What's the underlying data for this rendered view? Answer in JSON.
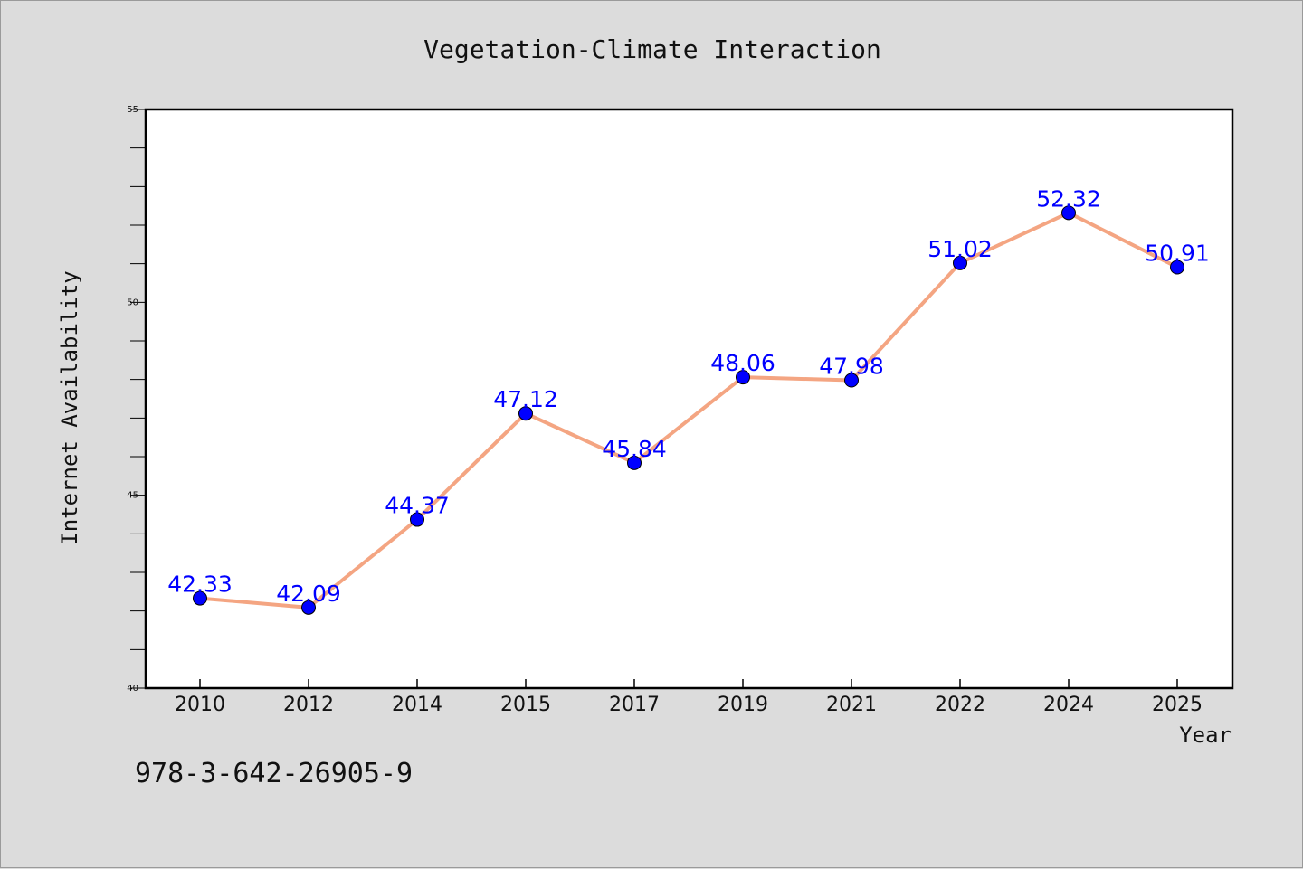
{
  "chart_data": {
    "type": "line",
    "title": "Vegetation-Climate Interaction",
    "xlabel": "Year",
    "ylabel": "Internet Availability",
    "categories": [
      "2010",
      "2012",
      "2014",
      "2015",
      "2017",
      "2019",
      "2021",
      "2022",
      "2024",
      "2025"
    ],
    "series": [
      {
        "values": [
          42.33,
          42.09,
          44.37,
          47.12,
          45.84,
          48.06,
          47.98,
          51.02,
          52.32,
          50.91
        ],
        "labels": [
          "42.33",
          "42.09",
          "44.37",
          "47.12",
          "45.84",
          "48.06",
          "47.98",
          "51.02",
          "52.32",
          "50.91"
        ],
        "line_color": "#f4a582",
        "marker_color": "#0000ff",
        "label_color": "#0000ff"
      }
    ],
    "ylim": [
      40,
      55
    ],
    "yticks": [
      "40",
      "45",
      "50",
      "55"
    ],
    "grid": false,
    "legend": "none"
  },
  "footer": {
    "text": "978-3-642-26905-9"
  }
}
